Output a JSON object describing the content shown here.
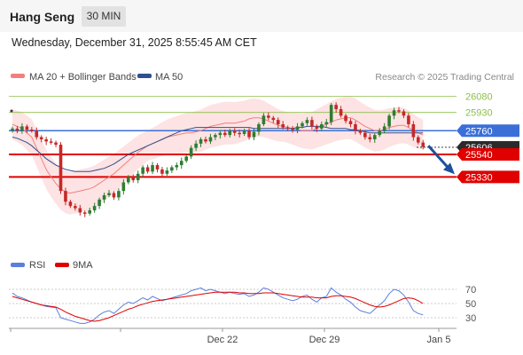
{
  "header": {
    "symbol": "Hang Seng",
    "timeframe": "30 MIN"
  },
  "datetime": "Wednesday, December 31, 2025 8:55:45 AM CET",
  "legend": {
    "ma20_label": "MA 20 + Bollinger Bands",
    "ma50_label": "MA 50",
    "credit": "Research © 2025 Trading Central"
  },
  "rsi_legend": {
    "rsi_label": "RSI",
    "ma9_label": "9MA"
  },
  "colors": {
    "ma20": "#f08080",
    "ma50": "#2f4f8f",
    "resistance": "#8cbf4a",
    "pivot": "#3b6fd8",
    "support": "#e00000",
    "bands": "#fde0e0",
    "up_candle": "#2e7d32",
    "down_candle": "#c62828",
    "rsi": "#5b7fdb",
    "rsi_ma": "#e00000"
  },
  "chart_data": [
    {
      "type": "candlestick",
      "title": "Hang Seng",
      "ylim": [
        24830,
        26150
      ],
      "levels": [
        {
          "value": 26080,
          "label": "26080",
          "kind": "resistance"
        },
        {
          "value": 25930,
          "label": "25930",
          "kind": "resistance"
        },
        {
          "value": 25760,
          "label": "25760",
          "kind": "pivot"
        },
        {
          "value": 25606,
          "label": "25606",
          "kind": "last_price"
        },
        {
          "value": 25540,
          "label": "25540",
          "kind": "support"
        },
        {
          "value": 25330,
          "label": "25330",
          "kind": "support"
        }
      ],
      "x_tick_labels": [
        "Dec 22",
        "Dec 29",
        "Jan 5"
      ],
      "close": [
        25780,
        25760,
        25800,
        25770,
        25760,
        25700,
        25680,
        25660,
        25650,
        25630,
        25200,
        25100,
        25060,
        25040,
        25000,
        24990,
        25020,
        25060,
        25120,
        25160,
        25180,
        25140,
        25200,
        25280,
        25330,
        25300,
        25360,
        25420,
        25380,
        25440,
        25400,
        25360,
        25390,
        25420,
        25440,
        25480,
        25520,
        25600,
        25640,
        25680,
        25660,
        25700,
        25720,
        25740,
        25720,
        25760,
        25740,
        25730,
        25760,
        25700,
        25750,
        25820,
        25900,
        25880,
        25860,
        25820,
        25790,
        25780,
        25770,
        25800,
        25830,
        25860,
        25800,
        25780,
        25820,
        25840,
        26000,
        25960,
        25900,
        25850,
        25820,
        25760,
        25740,
        25700,
        25680,
        25720,
        25760,
        25800,
        25900,
        25950,
        25940,
        25900,
        25820,
        25700,
        25650,
        25610
      ],
      "ma20": [
        25820,
        25800,
        25780,
        25740,
        25700,
        25600,
        25500,
        25400,
        25330,
        25270,
        25220,
        25190,
        25180,
        25190,
        25200,
        25210,
        25220,
        25240,
        25270,
        25300,
        25330,
        25360,
        25400,
        25440,
        25480,
        25520,
        25560,
        25590,
        25620,
        25640,
        25660,
        25680,
        25700,
        25710,
        25720,
        25730,
        25740,
        25740,
        25750,
        25760,
        25780,
        25800,
        25810,
        25820,
        25830,
        25830,
        25830,
        25840,
        25850,
        25870,
        25880,
        25880,
        25870,
        25850,
        25830,
        25810,
        25800,
        25790,
        25780,
        25770,
        25760,
        25760,
        25760,
        25780,
        25800,
        25820,
        25840,
        25860,
        25870,
        25880,
        25880,
        25860,
        25830,
        25800,
        25780,
        25760,
        25760,
        25770,
        25790,
        25800,
        25810,
        25810,
        25790,
        25760,
        25740,
        25720
      ],
      "ma50": [
        25700,
        25690,
        25670,
        25650,
        25620,
        25580,
        25540,
        25500,
        25470,
        25440,
        25420,
        25400,
        25390,
        25380,
        25380,
        25380,
        25380,
        25390,
        25400,
        25410,
        25430,
        25450,
        25480,
        25510,
        25540,
        25560,
        25580,
        25600,
        25620,
        25640,
        25660,
        25680,
        25700,
        25720,
        25740,
        25760,
        25770,
        25780,
        25790,
        25790,
        25790,
        25790,
        25790,
        25790,
        25790,
        25790,
        25790,
        25790,
        25790,
        25790,
        25780,
        25780,
        25780,
        25780,
        25780,
        25780,
        25780,
        25780,
        25780,
        25790,
        25790,
        25800,
        25800,
        25800,
        25800,
        25790,
        25780,
        25780,
        25780,
        25780,
        25770,
        25770,
        25760,
        25750,
        25740,
        25740,
        25740,
        25740,
        25740,
        25740,
        25740,
        25740,
        25740,
        25740,
        25740,
        25740
      ],
      "series": [
        {
          "name": "MA 20 + Bollinger Bands"
        },
        {
          "name": "MA 50"
        }
      ],
      "forecast_arrow": {
        "from": 25620,
        "to": 25380
      }
    },
    {
      "type": "line",
      "ylim": [
        20,
        80
      ],
      "y_tick_labels": [
        "70",
        "50",
        "30"
      ],
      "series": [
        {
          "name": "RSI",
          "values": [
            65,
            60,
            58,
            55,
            52,
            50,
            48,
            46,
            45,
            44,
            30,
            28,
            26,
            24,
            22,
            22,
            24,
            28,
            34,
            38,
            40,
            36,
            42,
            48,
            52,
            50,
            54,
            58,
            55,
            60,
            57,
            54,
            56,
            58,
            60,
            62,
            64,
            68,
            70,
            72,
            68,
            70,
            68,
            66,
            64,
            66,
            64,
            63,
            64,
            60,
            62,
            66,
            72,
            70,
            66,
            62,
            58,
            56,
            54,
            56,
            60,
            62,
            56,
            52,
            58,
            60,
            72,
            66,
            62,
            56,
            52,
            45,
            40,
            38,
            36,
            42,
            48,
            54,
            64,
            70,
            68,
            62,
            52,
            40,
            36,
            34
          ]
        },
        {
          "name": "9MA",
          "values": [
            60,
            58,
            56,
            54,
            52,
            50,
            48,
            47,
            46,
            45,
            42,
            38,
            35,
            32,
            30,
            28,
            26,
            25,
            26,
            28,
            30,
            33,
            36,
            39,
            42,
            44,
            47,
            49,
            51,
            53,
            54,
            55,
            56,
            57,
            58,
            59,
            60,
            61,
            62,
            63,
            64,
            65,
            66,
            66,
            66,
            66,
            66,
            65,
            65,
            64,
            64,
            64,
            65,
            65,
            65,
            64,
            63,
            62,
            61,
            60,
            59,
            59,
            59,
            58,
            58,
            58,
            60,
            61,
            61,
            60,
            59,
            57,
            54,
            51,
            48,
            46,
            45,
            46,
            48,
            51,
            54,
            57,
            58,
            57,
            54,
            50
          ]
        }
      ]
    }
  ]
}
